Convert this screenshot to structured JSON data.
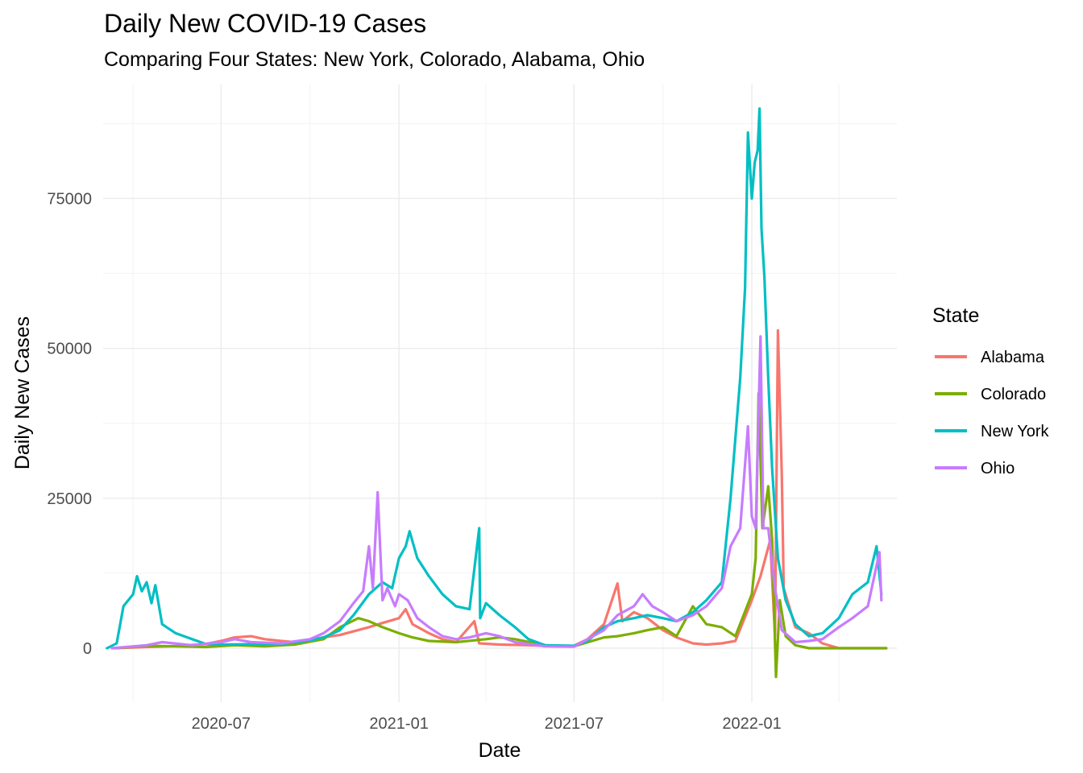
{
  "chart_data": {
    "type": "line",
    "title": "Daily New COVID-19 Cases",
    "subtitle": "Comparing Four States: New York, Colorado, Alabama, Ohio",
    "xlabel": "Date",
    "ylabel": "Daily New Cases",
    "legend_title": "State",
    "legend_position": "right",
    "grid": true,
    "x_tick_labels": [
      "2020-07",
      "2021-01",
      "2021-07",
      "2022-01"
    ],
    "y_ticks": [
      0,
      25000,
      50000,
      75000
    ],
    "xlim": [
      "2020-03-01",
      "2022-05-31"
    ],
    "ylim": [
      -9000,
      94000
    ],
    "series": [
      {
        "name": "Alabama",
        "color": "#F8766D",
        "points": [
          [
            "2020-03-12",
            0
          ],
          [
            "2020-04-15",
            200
          ],
          [
            "2020-05-15",
            350
          ],
          [
            "2020-06-15",
            700
          ],
          [
            "2020-07-01",
            1200
          ],
          [
            "2020-07-15",
            1800
          ],
          [
            "2020-08-01",
            2000
          ],
          [
            "2020-08-15",
            1500
          ],
          [
            "2020-09-01",
            1200
          ],
          [
            "2020-09-15",
            1000
          ],
          [
            "2020-10-01",
            1400
          ],
          [
            "2020-10-15",
            1800
          ],
          [
            "2020-11-01",
            2200
          ],
          [
            "2020-11-15",
            2800
          ],
          [
            "2020-12-01",
            3500
          ],
          [
            "2020-12-15",
            4200
          ],
          [
            "2021-01-01",
            5000
          ],
          [
            "2021-01-08",
            6500
          ],
          [
            "2021-01-15",
            4000
          ],
          [
            "2021-02-01",
            2500
          ],
          [
            "2021-02-15",
            1500
          ],
          [
            "2021-03-01",
            1000
          ],
          [
            "2021-03-20",
            4500
          ],
          [
            "2021-03-25",
            800
          ],
          [
            "2021-04-15",
            600
          ],
          [
            "2021-05-15",
            500
          ],
          [
            "2021-06-15",
            300
          ],
          [
            "2021-07-01",
            400
          ],
          [
            "2021-07-15",
            1500
          ],
          [
            "2021-08-01",
            4000
          ],
          [
            "2021-08-15",
            10800
          ],
          [
            "2021-08-20",
            4500
          ],
          [
            "2021-09-01",
            6000
          ],
          [
            "2021-09-15",
            5000
          ],
          [
            "2021-10-01",
            3000
          ],
          [
            "2021-10-15",
            1800
          ],
          [
            "2021-11-01",
            800
          ],
          [
            "2021-11-15",
            600
          ],
          [
            "2021-12-01",
            800
          ],
          [
            "2021-12-15",
            1200
          ],
          [
            "2022-01-01",
            8000
          ],
          [
            "2022-01-10",
            12000
          ],
          [
            "2022-01-20",
            18000
          ],
          [
            "2022-01-25",
            2000
          ],
          [
            "2022-01-28",
            53000
          ],
          [
            "2022-02-01",
            29000
          ],
          [
            "2022-02-03",
            10000
          ],
          [
            "2022-02-15",
            3500
          ],
          [
            "2022-03-01",
            2500
          ],
          [
            "2022-03-15",
            800
          ],
          [
            "2022-04-01",
            0
          ],
          [
            "2022-05-20",
            0
          ]
        ]
      },
      {
        "name": "Colorado",
        "color": "#7CAE00",
        "points": [
          [
            "2020-03-12",
            0
          ],
          [
            "2020-04-15",
            400
          ],
          [
            "2020-05-15",
            300
          ],
          [
            "2020-06-15",
            200
          ],
          [
            "2020-07-15",
            500
          ],
          [
            "2020-08-15",
            300
          ],
          [
            "2020-09-15",
            600
          ],
          [
            "2020-10-15",
            1500
          ],
          [
            "2020-11-01",
            3500
          ],
          [
            "2020-11-20",
            5000
          ],
          [
            "2020-12-01",
            4500
          ],
          [
            "2020-12-15",
            3500
          ],
          [
            "2021-01-01",
            2500
          ],
          [
            "2021-01-15",
            1800
          ],
          [
            "2021-02-01",
            1200
          ],
          [
            "2021-03-01",
            1000
          ],
          [
            "2021-04-01",
            1500
          ],
          [
            "2021-04-15",
            1800
          ],
          [
            "2021-05-01",
            1500
          ],
          [
            "2021-06-01",
            500
          ],
          [
            "2021-07-01",
            300
          ],
          [
            "2021-08-01",
            1800
          ],
          [
            "2021-08-15",
            2000
          ],
          [
            "2021-09-01",
            2500
          ],
          [
            "2021-09-15",
            3000
          ],
          [
            "2021-10-01",
            3500
          ],
          [
            "2021-10-15",
            2000
          ],
          [
            "2021-11-01",
            7000
          ],
          [
            "2021-11-15",
            4000
          ],
          [
            "2021-12-01",
            3500
          ],
          [
            "2021-12-15",
            2000
          ],
          [
            "2022-01-01",
            9000
          ],
          [
            "2022-01-05",
            15000
          ],
          [
            "2022-01-08",
            42500
          ],
          [
            "2022-01-12",
            20000
          ],
          [
            "2022-01-18",
            27000
          ],
          [
            "2022-01-22",
            18000
          ],
          [
            "2022-01-26",
            -4800
          ],
          [
            "2022-01-30",
            8000
          ],
          [
            "2022-02-05",
            2000
          ],
          [
            "2022-02-15",
            500
          ],
          [
            "2022-03-01",
            0
          ],
          [
            "2022-05-20",
            0
          ]
        ]
      },
      {
        "name": "New York",
        "color": "#00BFC4",
        "points": [
          [
            "2020-03-05",
            0
          ],
          [
            "2020-03-15",
            800
          ],
          [
            "2020-03-22",
            7000
          ],
          [
            "2020-04-01",
            9000
          ],
          [
            "2020-04-05",
            12000
          ],
          [
            "2020-04-10",
            9500
          ],
          [
            "2020-04-15",
            11000
          ],
          [
            "2020-04-20",
            7500
          ],
          [
            "2020-04-24",
            10500
          ],
          [
            "2020-05-01",
            4000
          ],
          [
            "2020-05-15",
            2500
          ],
          [
            "2020-06-01",
            1500
          ],
          [
            "2020-06-15",
            700
          ],
          [
            "2020-07-01",
            600
          ],
          [
            "2020-08-01",
            650
          ],
          [
            "2020-09-01",
            700
          ],
          [
            "2020-10-01",
            1300
          ],
          [
            "2020-10-15",
            1800
          ],
          [
            "2020-11-01",
            3000
          ],
          [
            "2020-11-15",
            5500
          ],
          [
            "2020-12-01",
            9000
          ],
          [
            "2020-12-15",
            11000
          ],
          [
            "2020-12-25",
            10000
          ],
          [
            "2021-01-01",
            15000
          ],
          [
            "2021-01-08",
            17000
          ],
          [
            "2021-01-12",
            19500
          ],
          [
            "2021-01-20",
            15000
          ],
          [
            "2021-02-01",
            12000
          ],
          [
            "2021-02-15",
            9000
          ],
          [
            "2021-03-01",
            7000
          ],
          [
            "2021-03-15",
            6500
          ],
          [
            "2021-03-25",
            20000
          ],
          [
            "2021-03-26",
            5000
          ],
          [
            "2021-04-01",
            7500
          ],
          [
            "2021-04-15",
            5500
          ],
          [
            "2021-05-01",
            3500
          ],
          [
            "2021-05-15",
            1500
          ],
          [
            "2021-06-01",
            500
          ],
          [
            "2021-07-01",
            400
          ],
          [
            "2021-07-15",
            1200
          ],
          [
            "2021-08-01",
            3500
          ],
          [
            "2021-08-15",
            4500
          ],
          [
            "2021-09-01",
            5000
          ],
          [
            "2021-09-15",
            5500
          ],
          [
            "2021-10-01",
            5000
          ],
          [
            "2021-10-15",
            4500
          ],
          [
            "2021-11-01",
            6000
          ],
          [
            "2021-11-15",
            8000
          ],
          [
            "2021-12-01",
            11000
          ],
          [
            "2021-12-10",
            25000
          ],
          [
            "2021-12-20",
            45000
          ],
          [
            "2021-12-25",
            60000
          ],
          [
            "2021-12-28",
            86000
          ],
          [
            "2022-01-01",
            75000
          ],
          [
            "2022-01-04",
            81000
          ],
          [
            "2022-01-07",
            83000
          ],
          [
            "2022-01-09",
            90000
          ],
          [
            "2022-01-11",
            70000
          ],
          [
            "2022-01-14",
            62000
          ],
          [
            "2022-01-18",
            45000
          ],
          [
            "2022-01-22",
            30000
          ],
          [
            "2022-01-28",
            15000
          ],
          [
            "2022-02-05",
            8000
          ],
          [
            "2022-02-15",
            4000
          ],
          [
            "2022-03-01",
            2000
          ],
          [
            "2022-03-15",
            2500
          ],
          [
            "2022-04-01",
            5000
          ],
          [
            "2022-04-15",
            9000
          ],
          [
            "2022-05-01",
            11000
          ],
          [
            "2022-05-10",
            17000
          ],
          [
            "2022-05-15",
            9000
          ]
        ]
      },
      {
        "name": "Ohio",
        "color": "#C77CFF",
        "points": [
          [
            "2020-03-10",
            0
          ],
          [
            "2020-04-15",
            500
          ],
          [
            "2020-05-01",
            1000
          ],
          [
            "2020-06-01",
            500
          ],
          [
            "2020-07-01",
            1000
          ],
          [
            "2020-07-15",
            1500
          ],
          [
            "2020-08-01",
            1000
          ],
          [
            "2020-09-01",
            800
          ],
          [
            "2020-10-01",
            1500
          ],
          [
            "2020-10-15",
            2500
          ],
          [
            "2020-11-01",
            4500
          ],
          [
            "2020-11-15",
            7500
          ],
          [
            "2020-11-25",
            9500
          ],
          [
            "2020-12-01",
            17000
          ],
          [
            "2020-12-05",
            10000
          ],
          [
            "2020-12-10",
            26000
          ],
          [
            "2020-12-15",
            8000
          ],
          [
            "2020-12-20",
            10000
          ],
          [
            "2020-12-28",
            7000
          ],
          [
            "2021-01-01",
            9000
          ],
          [
            "2021-01-10",
            8000
          ],
          [
            "2021-01-20",
            5000
          ],
          [
            "2021-02-01",
            3500
          ],
          [
            "2021-02-15",
            2000
          ],
          [
            "2021-03-01",
            1500
          ],
          [
            "2021-03-15",
            1800
          ],
          [
            "2021-04-01",
            2500
          ],
          [
            "2021-04-15",
            2000
          ],
          [
            "2021-05-01",
            1000
          ],
          [
            "2021-06-01",
            300
          ],
          [
            "2021-07-01",
            250
          ],
          [
            "2021-08-01",
            3000
          ],
          [
            "2021-08-15",
            5500
          ],
          [
            "2021-09-01",
            7000
          ],
          [
            "2021-09-10",
            9000
          ],
          [
            "2021-09-20",
            7000
          ],
          [
            "2021-10-01",
            6000
          ],
          [
            "2021-10-15",
            4500
          ],
          [
            "2021-11-01",
            5500
          ],
          [
            "2021-11-15",
            7000
          ],
          [
            "2021-12-01",
            10000
          ],
          [
            "2021-12-10",
            17000
          ],
          [
            "2021-12-20",
            20000
          ],
          [
            "2021-12-28",
            37000
          ],
          [
            "2022-01-01",
            22000
          ],
          [
            "2022-01-05",
            20000
          ],
          [
            "2022-01-10",
            52000
          ],
          [
            "2022-01-13",
            20000
          ],
          [
            "2022-01-18",
            20000
          ],
          [
            "2022-01-25",
            10000
          ],
          [
            "2022-02-01",
            3000
          ],
          [
            "2022-02-15",
            1000
          ],
          [
            "2022-03-01",
            1200
          ],
          [
            "2022-03-15",
            1500
          ],
          [
            "2022-04-01",
            3500
          ],
          [
            "2022-04-15",
            5000
          ],
          [
            "2022-05-01",
            7000
          ],
          [
            "2022-05-13",
            16000
          ],
          [
            "2022-05-15",
            8000
          ]
        ]
      }
    ]
  }
}
